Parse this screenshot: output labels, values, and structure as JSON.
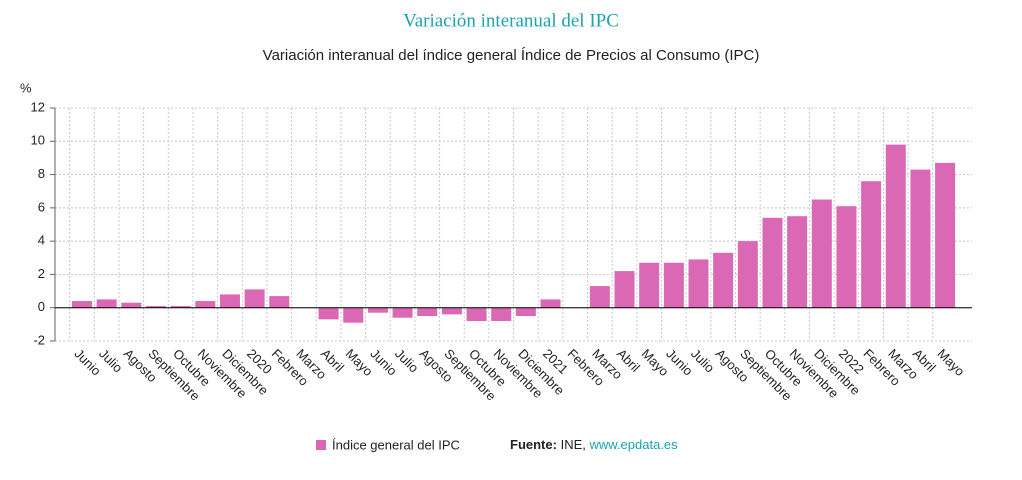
{
  "chart_data": {
    "type": "bar",
    "title": "Variación interanual del IPC",
    "subtitle": "Variación interanual del índice general Índice de Precios al Consumo (IPC)",
    "y_label": "%",
    "categories": [
      "Junio",
      "Julio",
      "Agosto",
      "Septiembre",
      "Octubre",
      "Noviembre",
      "Diciembre",
      "2020",
      "Febrero",
      "Marzo",
      "Abril",
      "Mayo",
      "Junio",
      "Julio",
      "Agosto",
      "Septiembre",
      "Octubre",
      "Noviembre",
      "Diciembre",
      "2021",
      "Febrero",
      "Marzo",
      "Abril",
      "Mayo",
      "Junio",
      "Julio",
      "Agosto",
      "Septiembre",
      "Octubre",
      "Noviembre",
      "Diciembre",
      "2022",
      "Febrero",
      "Marzo",
      "Abril",
      "Mayo"
    ],
    "series": [
      {
        "name": "Índice general del IPC",
        "color": "#db68b5",
        "values": [
          0.4,
          0.5,
          0.3,
          0.1,
          0.1,
          0.4,
          0.8,
          1.1,
          0.7,
          0.0,
          -0.7,
          -0.9,
          -0.3,
          -0.6,
          -0.5,
          -0.4,
          -0.8,
          -0.8,
          -0.5,
          0.5,
          0.0,
          1.3,
          2.2,
          2.7,
          2.7,
          2.9,
          3.3,
          4.0,
          5.4,
          5.5,
          6.5,
          6.1,
          7.6,
          9.8,
          8.3,
          8.7
        ]
      }
    ],
    "ylim": [
      -2,
      12
    ],
    "yticks": [
      -2,
      0,
      2,
      4,
      6,
      8,
      10,
      12
    ],
    "grid": true,
    "source_label": "Fuente:",
    "source_text": "INE,",
    "source_link": "www.epdata.es"
  }
}
